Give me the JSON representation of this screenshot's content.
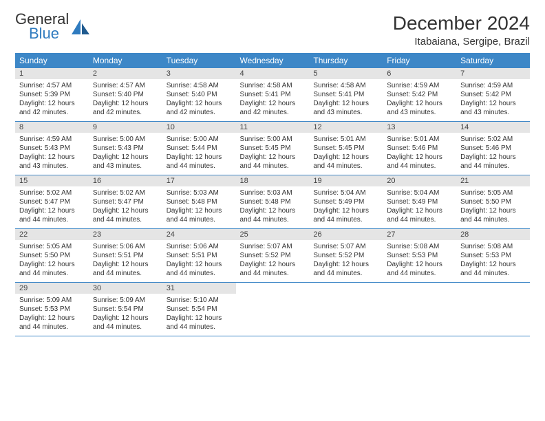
{
  "brand": {
    "line1": "General",
    "line2": "Blue",
    "icon_color": "#2f7bbf",
    "text_gray": "#6b6b6b"
  },
  "title": "December 2024",
  "location": "Itabaiana, Sergipe, Brazil",
  "colors": {
    "header_bg": "#3d87c7",
    "header_fg": "#ffffff",
    "daynum_bg": "#e5e5e5",
    "row_border": "#3d87c7"
  },
  "weekdays": [
    "Sunday",
    "Monday",
    "Tuesday",
    "Wednesday",
    "Thursday",
    "Friday",
    "Saturday"
  ],
  "weeks": [
    [
      {
        "n": "1",
        "sr": "Sunrise: 4:57 AM",
        "ss": "Sunset: 5:39 PM",
        "d1": "Daylight: 12 hours",
        "d2": "and 42 minutes."
      },
      {
        "n": "2",
        "sr": "Sunrise: 4:57 AM",
        "ss": "Sunset: 5:40 PM",
        "d1": "Daylight: 12 hours",
        "d2": "and 42 minutes."
      },
      {
        "n": "3",
        "sr": "Sunrise: 4:58 AM",
        "ss": "Sunset: 5:40 PM",
        "d1": "Daylight: 12 hours",
        "d2": "and 42 minutes."
      },
      {
        "n": "4",
        "sr": "Sunrise: 4:58 AM",
        "ss": "Sunset: 5:41 PM",
        "d1": "Daylight: 12 hours",
        "d2": "and 42 minutes."
      },
      {
        "n": "5",
        "sr": "Sunrise: 4:58 AM",
        "ss": "Sunset: 5:41 PM",
        "d1": "Daylight: 12 hours",
        "d2": "and 43 minutes."
      },
      {
        "n": "6",
        "sr": "Sunrise: 4:59 AM",
        "ss": "Sunset: 5:42 PM",
        "d1": "Daylight: 12 hours",
        "d2": "and 43 minutes."
      },
      {
        "n": "7",
        "sr": "Sunrise: 4:59 AM",
        "ss": "Sunset: 5:42 PM",
        "d1": "Daylight: 12 hours",
        "d2": "and 43 minutes."
      }
    ],
    [
      {
        "n": "8",
        "sr": "Sunrise: 4:59 AM",
        "ss": "Sunset: 5:43 PM",
        "d1": "Daylight: 12 hours",
        "d2": "and 43 minutes."
      },
      {
        "n": "9",
        "sr": "Sunrise: 5:00 AM",
        "ss": "Sunset: 5:43 PM",
        "d1": "Daylight: 12 hours",
        "d2": "and 43 minutes."
      },
      {
        "n": "10",
        "sr": "Sunrise: 5:00 AM",
        "ss": "Sunset: 5:44 PM",
        "d1": "Daylight: 12 hours",
        "d2": "and 44 minutes."
      },
      {
        "n": "11",
        "sr": "Sunrise: 5:00 AM",
        "ss": "Sunset: 5:45 PM",
        "d1": "Daylight: 12 hours",
        "d2": "and 44 minutes."
      },
      {
        "n": "12",
        "sr": "Sunrise: 5:01 AM",
        "ss": "Sunset: 5:45 PM",
        "d1": "Daylight: 12 hours",
        "d2": "and 44 minutes."
      },
      {
        "n": "13",
        "sr": "Sunrise: 5:01 AM",
        "ss": "Sunset: 5:46 PM",
        "d1": "Daylight: 12 hours",
        "d2": "and 44 minutes."
      },
      {
        "n": "14",
        "sr": "Sunrise: 5:02 AM",
        "ss": "Sunset: 5:46 PM",
        "d1": "Daylight: 12 hours",
        "d2": "and 44 minutes."
      }
    ],
    [
      {
        "n": "15",
        "sr": "Sunrise: 5:02 AM",
        "ss": "Sunset: 5:47 PM",
        "d1": "Daylight: 12 hours",
        "d2": "and 44 minutes."
      },
      {
        "n": "16",
        "sr": "Sunrise: 5:02 AM",
        "ss": "Sunset: 5:47 PM",
        "d1": "Daylight: 12 hours",
        "d2": "and 44 minutes."
      },
      {
        "n": "17",
        "sr": "Sunrise: 5:03 AM",
        "ss": "Sunset: 5:48 PM",
        "d1": "Daylight: 12 hours",
        "d2": "and 44 minutes."
      },
      {
        "n": "18",
        "sr": "Sunrise: 5:03 AM",
        "ss": "Sunset: 5:48 PM",
        "d1": "Daylight: 12 hours",
        "d2": "and 44 minutes."
      },
      {
        "n": "19",
        "sr": "Sunrise: 5:04 AM",
        "ss": "Sunset: 5:49 PM",
        "d1": "Daylight: 12 hours",
        "d2": "and 44 minutes."
      },
      {
        "n": "20",
        "sr": "Sunrise: 5:04 AM",
        "ss": "Sunset: 5:49 PM",
        "d1": "Daylight: 12 hours",
        "d2": "and 44 minutes."
      },
      {
        "n": "21",
        "sr": "Sunrise: 5:05 AM",
        "ss": "Sunset: 5:50 PM",
        "d1": "Daylight: 12 hours",
        "d2": "and 44 minutes."
      }
    ],
    [
      {
        "n": "22",
        "sr": "Sunrise: 5:05 AM",
        "ss": "Sunset: 5:50 PM",
        "d1": "Daylight: 12 hours",
        "d2": "and 44 minutes."
      },
      {
        "n": "23",
        "sr": "Sunrise: 5:06 AM",
        "ss": "Sunset: 5:51 PM",
        "d1": "Daylight: 12 hours",
        "d2": "and 44 minutes."
      },
      {
        "n": "24",
        "sr": "Sunrise: 5:06 AM",
        "ss": "Sunset: 5:51 PM",
        "d1": "Daylight: 12 hours",
        "d2": "and 44 minutes."
      },
      {
        "n": "25",
        "sr": "Sunrise: 5:07 AM",
        "ss": "Sunset: 5:52 PM",
        "d1": "Daylight: 12 hours",
        "d2": "and 44 minutes."
      },
      {
        "n": "26",
        "sr": "Sunrise: 5:07 AM",
        "ss": "Sunset: 5:52 PM",
        "d1": "Daylight: 12 hours",
        "d2": "and 44 minutes."
      },
      {
        "n": "27",
        "sr": "Sunrise: 5:08 AM",
        "ss": "Sunset: 5:53 PM",
        "d1": "Daylight: 12 hours",
        "d2": "and 44 minutes."
      },
      {
        "n": "28",
        "sr": "Sunrise: 5:08 AM",
        "ss": "Sunset: 5:53 PM",
        "d1": "Daylight: 12 hours",
        "d2": "and 44 minutes."
      }
    ],
    [
      {
        "n": "29",
        "sr": "Sunrise: 5:09 AM",
        "ss": "Sunset: 5:53 PM",
        "d1": "Daylight: 12 hours",
        "d2": "and 44 minutes."
      },
      {
        "n": "30",
        "sr": "Sunrise: 5:09 AM",
        "ss": "Sunset: 5:54 PM",
        "d1": "Daylight: 12 hours",
        "d2": "and 44 minutes."
      },
      {
        "n": "31",
        "sr": "Sunrise: 5:10 AM",
        "ss": "Sunset: 5:54 PM",
        "d1": "Daylight: 12 hours",
        "d2": "and 44 minutes."
      },
      {
        "empty": true
      },
      {
        "empty": true
      },
      {
        "empty": true
      },
      {
        "empty": true
      }
    ]
  ]
}
